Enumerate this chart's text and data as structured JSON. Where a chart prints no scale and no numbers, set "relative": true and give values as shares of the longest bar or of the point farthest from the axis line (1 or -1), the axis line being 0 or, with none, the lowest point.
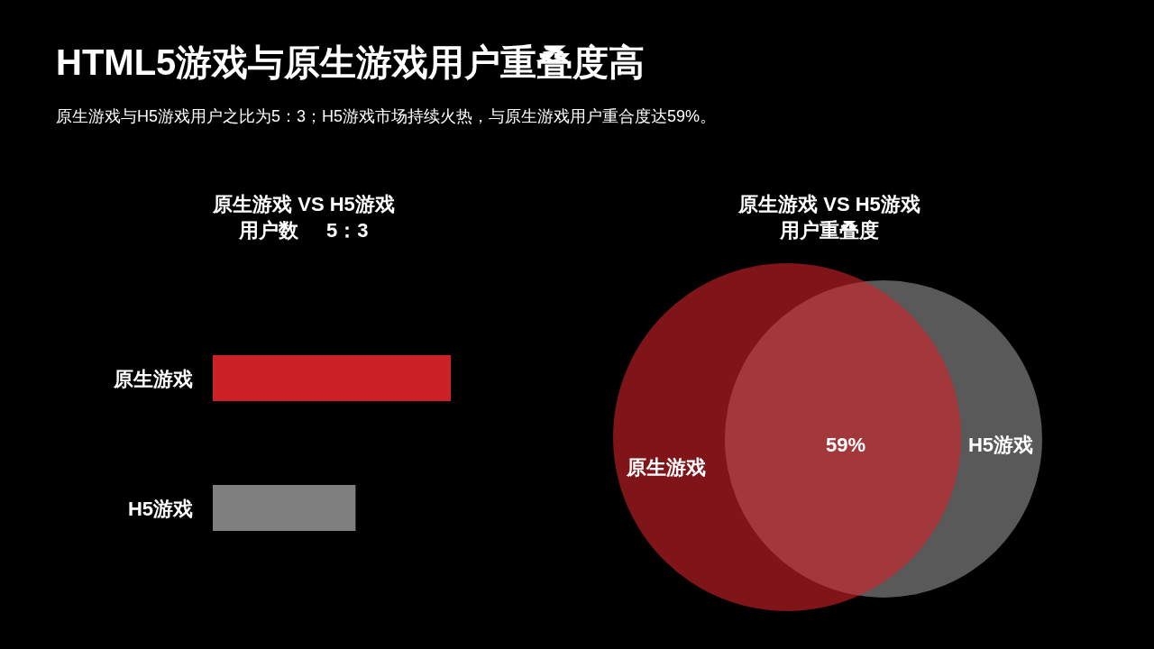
{
  "chart_data": [
    {
      "type": "other",
      "title": "HTML5游戏与原生游戏用户重叠度高",
      "subtitle": "原生游戏与H5游戏用户之比为5：3；H5游戏市场持续火热，与原生游戏用户重合度达59%。"
    },
    {
      "type": "bar",
      "orientation": "horizontal",
      "relative": true,
      "title": "原生游戏 VS H5游戏",
      "subtitle": "用户数     5：3",
      "categories": [
        "原生游戏",
        "H5游戏"
      ],
      "values": [
        1,
        0.6
      ],
      "colors": [
        "#cc2027",
        "#7f7f7f"
      ]
    },
    {
      "type": "other",
      "title": "原生游戏 VS H5游戏",
      "subtitle": "用户重叠度",
      "categories": [
        "原生游戏",
        "H5游戏"
      ],
      "colors": [
        "#d4212a",
        "#595959"
      ],
      "annotations": [
        "59%"
      ]
    }
  ]
}
